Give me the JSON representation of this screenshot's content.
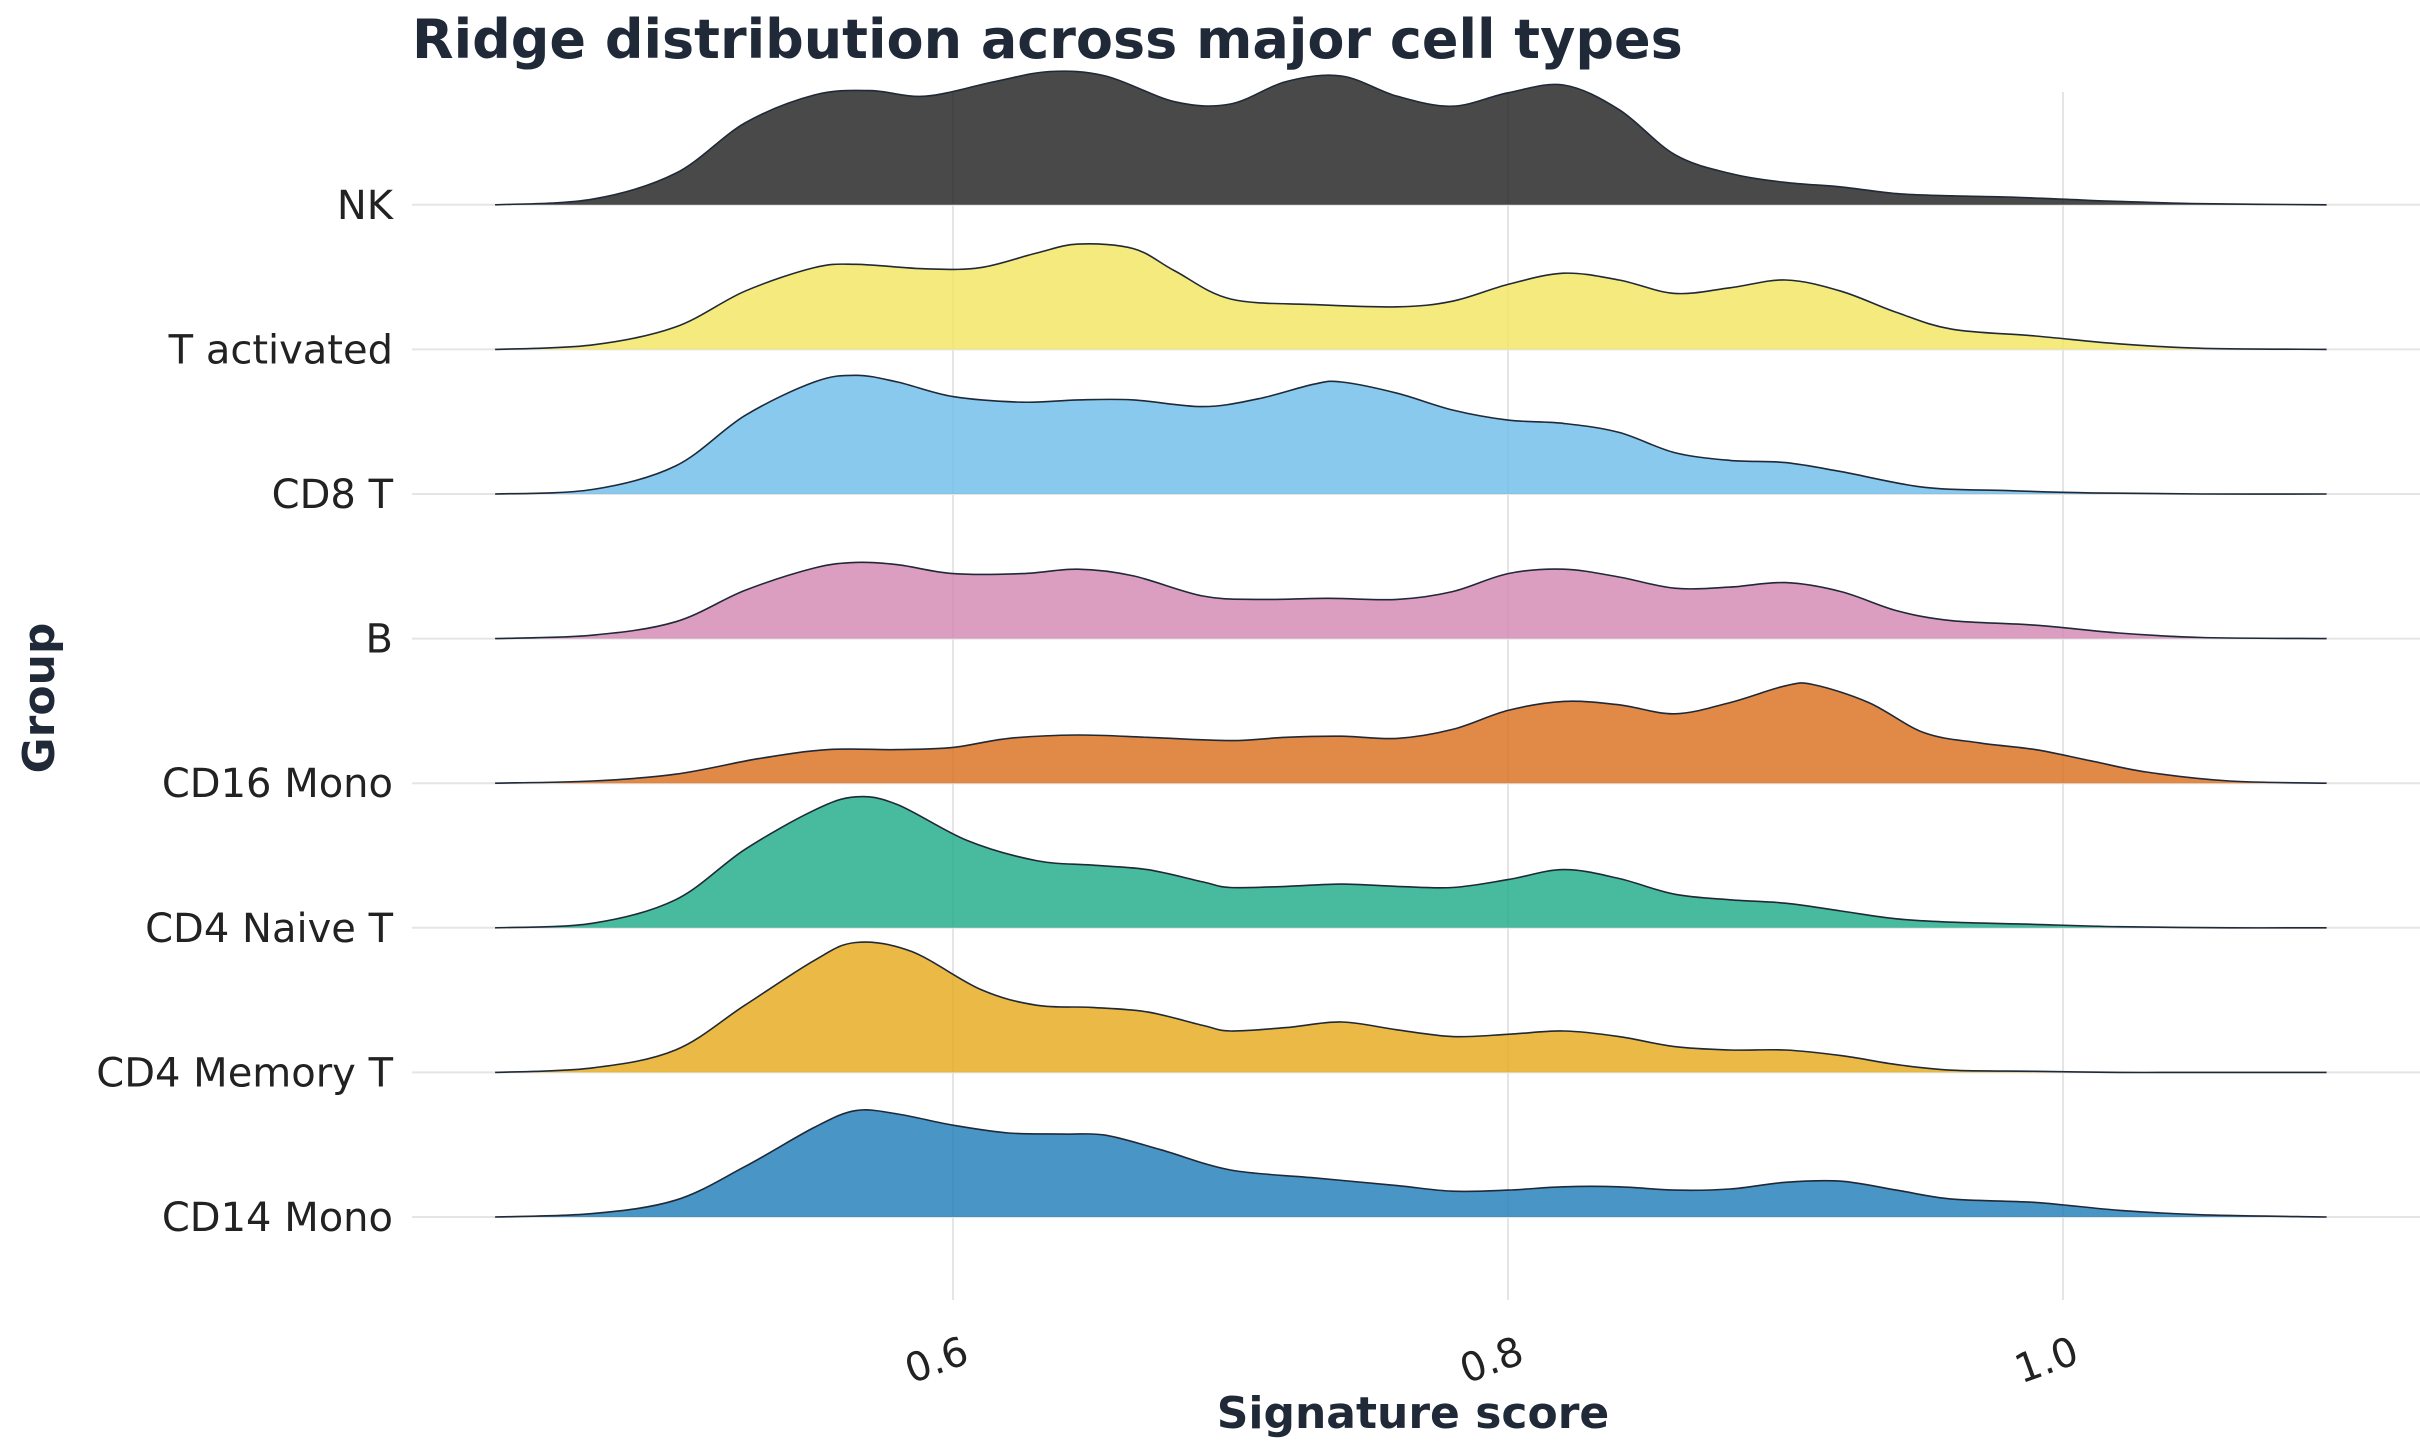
{
  "chart_data": {
    "type": "ridgeline",
    "title": "Ridge distribution across major cell types",
    "xlabel": "Signature score",
    "ylabel": "Group",
    "xlim": [
      0.415,
      1.13
    ],
    "x_ticks": [
      "0.6",
      "0.8",
      "1.0"
    ],
    "x_tick_values": [
      0.6,
      0.8,
      1.0
    ],
    "x_range_drawn": [
      0.435,
      1.095
    ],
    "grid": true,
    "legend": "none",
    "fill_opacity": 0.8,
    "categories": [
      "CD14 Mono",
      "CD4 Memory T",
      "CD4 Naive T",
      "CD16 Mono",
      "B",
      "CD8 T",
      "T activated",
      "NK"
    ],
    "series": [
      {
        "name": "CD14 Mono",
        "color": "#1a7ab8",
        "x": [
          0.435,
          0.47,
          0.5,
          0.525,
          0.55,
          0.565,
          0.58,
          0.6,
          0.62,
          0.64,
          0.655,
          0.675,
          0.7,
          0.73,
          0.76,
          0.78,
          0.8,
          0.82,
          0.84,
          0.86,
          0.88,
          0.9,
          0.92,
          0.94,
          0.96,
          0.99,
          1.02,
          1.05,
          1.095
        ],
        "y": [
          0.0,
          0.03,
          0.15,
          0.45,
          0.8,
          0.95,
          0.92,
          0.82,
          0.75,
          0.74,
          0.73,
          0.6,
          0.42,
          0.35,
          0.28,
          0.23,
          0.24,
          0.27,
          0.27,
          0.24,
          0.25,
          0.31,
          0.32,
          0.24,
          0.16,
          0.13,
          0.06,
          0.02,
          0.0
        ]
      },
      {
        "name": "CD4 Memory T",
        "color": "#e6a817",
        "x": [
          0.435,
          0.47,
          0.5,
          0.525,
          0.55,
          0.565,
          0.585,
          0.61,
          0.63,
          0.65,
          0.67,
          0.69,
          0.7,
          0.72,
          0.74,
          0.76,
          0.78,
          0.8,
          0.82,
          0.84,
          0.86,
          0.88,
          0.9,
          0.92,
          0.94,
          0.96,
          0.99,
          1.02,
          1.05,
          1.095
        ],
        "y": [
          0.0,
          0.04,
          0.2,
          0.6,
          1.0,
          1.16,
          1.08,
          0.74,
          0.6,
          0.58,
          0.54,
          0.42,
          0.37,
          0.4,
          0.45,
          0.38,
          0.32,
          0.34,
          0.37,
          0.32,
          0.23,
          0.2,
          0.2,
          0.15,
          0.07,
          0.02,
          0.01,
          0.0,
          0.0,
          0.0
        ]
      },
      {
        "name": "CD4 Naive T",
        "color": "#1aa985",
        "x": [
          0.435,
          0.47,
          0.5,
          0.525,
          0.55,
          0.565,
          0.58,
          0.605,
          0.63,
          0.65,
          0.67,
          0.69,
          0.7,
          0.72,
          0.74,
          0.76,
          0.78,
          0.8,
          0.82,
          0.84,
          0.86,
          0.88,
          0.9,
          0.92,
          0.94,
          0.96,
          0.99,
          1.02,
          1.06,
          1.095
        ],
        "y": [
          0.0,
          0.04,
          0.25,
          0.7,
          1.05,
          1.17,
          1.1,
          0.78,
          0.6,
          0.56,
          0.52,
          0.41,
          0.36,
          0.37,
          0.39,
          0.37,
          0.36,
          0.43,
          0.52,
          0.44,
          0.3,
          0.25,
          0.22,
          0.15,
          0.08,
          0.05,
          0.03,
          0.01,
          0.0,
          0.0
        ]
      },
      {
        "name": "CD16 Mono",
        "color": "#d96b19",
        "x": [
          0.435,
          0.47,
          0.5,
          0.53,
          0.555,
          0.58,
          0.6,
          0.62,
          0.645,
          0.67,
          0.7,
          0.72,
          0.74,
          0.76,
          0.78,
          0.8,
          0.82,
          0.84,
          0.86,
          0.88,
          0.9,
          0.91,
          0.93,
          0.95,
          0.97,
          0.99,
          1.01,
          1.03,
          1.06,
          1.095
        ],
        "y": [
          0.0,
          0.02,
          0.08,
          0.22,
          0.3,
          0.3,
          0.32,
          0.4,
          0.43,
          0.41,
          0.38,
          0.41,
          0.42,
          0.4,
          0.48,
          0.65,
          0.73,
          0.7,
          0.62,
          0.72,
          0.87,
          0.88,
          0.72,
          0.45,
          0.36,
          0.3,
          0.2,
          0.1,
          0.02,
          0.0
        ]
      },
      {
        "name": "B",
        "color": "#d286b1",
        "x": [
          0.435,
          0.47,
          0.5,
          0.525,
          0.55,
          0.565,
          0.58,
          0.6,
          0.625,
          0.645,
          0.665,
          0.69,
          0.71,
          0.735,
          0.76,
          0.78,
          0.8,
          0.82,
          0.84,
          0.86,
          0.88,
          0.9,
          0.92,
          0.94,
          0.96,
          0.99,
          1.02,
          1.05,
          1.095
        ],
        "y": [
          0.0,
          0.03,
          0.15,
          0.43,
          0.63,
          0.68,
          0.66,
          0.58,
          0.58,
          0.62,
          0.56,
          0.38,
          0.35,
          0.36,
          0.35,
          0.42,
          0.58,
          0.62,
          0.55,
          0.45,
          0.46,
          0.5,
          0.42,
          0.25,
          0.16,
          0.12,
          0.05,
          0.01,
          0.0
        ]
      },
      {
        "name": "CD8 T",
        "color": "#6bbbe8",
        "x": [
          0.435,
          0.47,
          0.5,
          0.525,
          0.55,
          0.565,
          0.58,
          0.6,
          0.625,
          0.645,
          0.665,
          0.69,
          0.71,
          0.73,
          0.74,
          0.76,
          0.78,
          0.8,
          0.82,
          0.84,
          0.86,
          0.88,
          0.9,
          0.92,
          0.95,
          0.98,
          1.01,
          1.05,
          1.095
        ],
        "y": [
          0.0,
          0.04,
          0.25,
          0.7,
          1.0,
          1.06,
          1.0,
          0.87,
          0.82,
          0.84,
          0.84,
          0.78,
          0.85,
          0.98,
          1.0,
          0.9,
          0.75,
          0.66,
          0.63,
          0.55,
          0.37,
          0.3,
          0.28,
          0.2,
          0.06,
          0.03,
          0.01,
          0.0,
          0.0
        ]
      },
      {
        "name": "T activated",
        "color": "#f2e55c",
        "x": [
          0.435,
          0.47,
          0.5,
          0.525,
          0.55,
          0.565,
          0.59,
          0.61,
          0.63,
          0.645,
          0.665,
          0.68,
          0.7,
          0.73,
          0.76,
          0.78,
          0.8,
          0.82,
          0.84,
          0.86,
          0.88,
          0.9,
          0.92,
          0.94,
          0.96,
          0.99,
          1.02,
          1.05,
          1.095
        ],
        "y": [
          0.0,
          0.04,
          0.2,
          0.52,
          0.73,
          0.76,
          0.72,
          0.73,
          0.86,
          0.94,
          0.9,
          0.7,
          0.45,
          0.4,
          0.38,
          0.43,
          0.58,
          0.68,
          0.62,
          0.5,
          0.55,
          0.62,
          0.52,
          0.33,
          0.18,
          0.12,
          0.05,
          0.01,
          0.0
        ]
      },
      {
        "name": "NK",
        "color": "#1c1c1c",
        "x": [
          0.435,
          0.47,
          0.5,
          0.525,
          0.55,
          0.57,
          0.59,
          0.615,
          0.635,
          0.655,
          0.68,
          0.7,
          0.72,
          0.74,
          0.76,
          0.78,
          0.8,
          0.82,
          0.84,
          0.86,
          0.88,
          0.9,
          0.92,
          0.94,
          0.96,
          0.98,
          1.0,
          1.02,
          1.05,
          1.095
        ],
        "y": [
          0.0,
          0.05,
          0.28,
          0.73,
          0.98,
          1.02,
          0.97,
          1.1,
          1.19,
          1.15,
          0.92,
          0.9,
          1.1,
          1.15,
          0.97,
          0.88,
          1.0,
          1.07,
          0.85,
          0.45,
          0.28,
          0.2,
          0.16,
          0.1,
          0.08,
          0.07,
          0.05,
          0.03,
          0.01,
          0.0
        ]
      }
    ]
  }
}
